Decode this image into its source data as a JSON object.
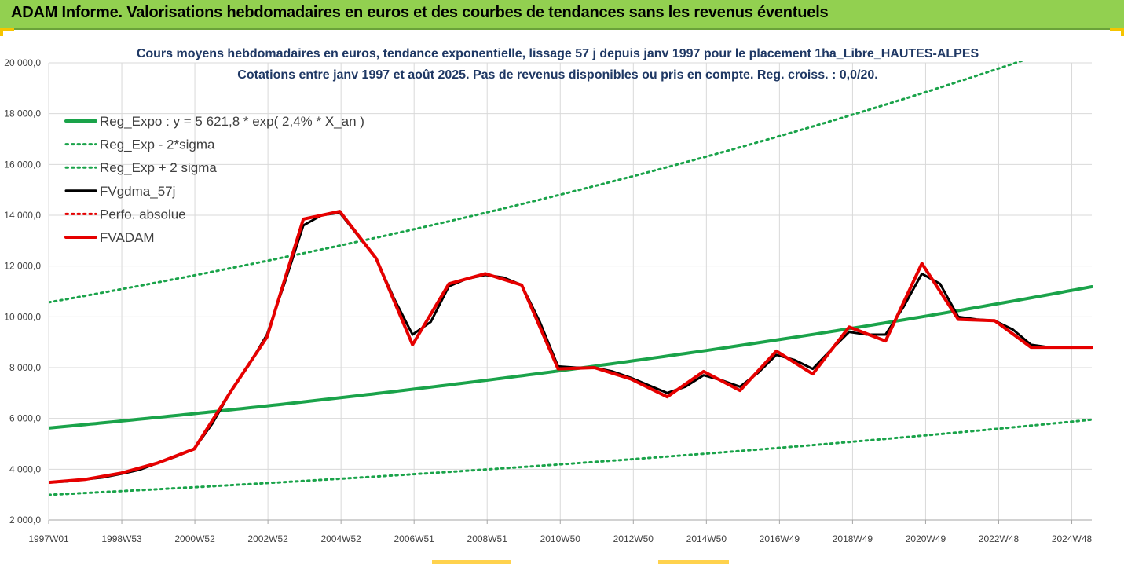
{
  "header": {
    "title": "ADAM Informe. Valorisations hebdomadaires en euros et des courbes de tendances sans les revenus éventuels"
  },
  "chart_data": {
    "type": "line",
    "title_line1": "Cours moyens hebdomadaires en euros, tendance exponentielle, lissage 57 j depuis janv 1997 pour le placement 1ha_Libre_HAUTES-ALPES",
    "title_line2": "Cotations entre janv 1997 et août 2025. Pas de revenus disponibles ou pris en compte. Reg. croiss. : 0,0/20.",
    "ylim": [
      2000,
      20000
    ],
    "xlim": [
      1997.0,
      2025.67
    ],
    "yticks": [
      "2 000,0",
      "4 000,0",
      "6 000,0",
      "8 000,0",
      "10 000,0",
      "12 000,0",
      "14 000,0",
      "16 000,0",
      "18 000,0",
      "20 000,0"
    ],
    "xtick_labels": [
      "1997W01",
      "1998W53",
      "2000W52",
      "2002W52",
      "2004W52",
      "2006W51",
      "2008W51",
      "2010W50",
      "2012W50",
      "2014W50",
      "2016W49",
      "2018W49",
      "2020W49",
      "2022W48",
      "2024W48"
    ],
    "legend_position": "top-left",
    "series": [
      {
        "name": "Reg_Expo : y = 5 621,8 * exp( 2,4% *  X_an )",
        "color": "#1aa34a",
        "style": "solid-thick",
        "formula": {
          "a": 5621.8,
          "b": 0.024,
          "factor": 1.0
        }
      },
      {
        "name": "Reg_Exp - 2*sigma",
        "color": "#1aa34a",
        "style": "dotted",
        "formula": {
          "a": 5621.8,
          "b": 0.024,
          "factor": 0.532
        }
      },
      {
        "name": "Reg_Exp + 2 sigma",
        "color": "#1aa34a",
        "style": "dotted",
        "formula": {
          "a": 5621.8,
          "b": 0.024,
          "factor": 1.88
        }
      },
      {
        "name": "FVgdma_57j",
        "color": "#000000",
        "style": "solid",
        "x": [
          1997.0,
          1997.5,
          1998.0,
          1998.5,
          1999.0,
          1999.5,
          2000.0,
          2000.5,
          2001.0,
          2001.5,
          2002.0,
          2002.5,
          2003.0,
          2003.5,
          2004.0,
          2004.5,
          2005.0,
          2005.5,
          2006.0,
          2006.5,
          2007.0,
          2007.5,
          2008.0,
          2008.5,
          2009.0,
          2009.5,
          2010.0,
          2010.5,
          2011.0,
          2011.5,
          2012.0,
          2012.5,
          2013.0,
          2013.5,
          2014.0,
          2014.5,
          2015.0,
          2015.5,
          2016.0,
          2016.5,
          2017.0,
          2017.5,
          2018.0,
          2018.5,
          2019.0,
          2019.5,
          2020.0,
          2020.5,
          2021.0,
          2021.5,
          2022.0,
          2022.5,
          2023.0,
          2023.5,
          2024.0,
          2024.5,
          2025.0,
          2025.67
        ],
        "values": [
          3480,
          3520,
          3600,
          3680,
          3820,
          3980,
          4250,
          4500,
          4800,
          5800,
          7050,
          8100,
          9300,
          11400,
          13600,
          14000,
          14100,
          13200,
          12300,
          10700,
          9300,
          9800,
          11200,
          11500,
          11650,
          11550,
          11250,
          9800,
          8050,
          8000,
          8000,
          7850,
          7600,
          7300,
          7000,
          7250,
          7700,
          7500,
          7250,
          7800,
          8500,
          8300,
          7950,
          8700,
          9400,
          9300,
          9300,
          10400,
          11700,
          11300,
          10000,
          9900,
          9850,
          9500,
          8900,
          8800,
          8800,
          8800
        ]
      },
      {
        "name": "Perfo. absolue",
        "color": "#e60000",
        "style": "dotted",
        "x": [],
        "values": []
      },
      {
        "name": "FVADAM",
        "color": "#e60000",
        "style": "solid-thick",
        "x": [
          1997.0,
          1998.0,
          1999.0,
          2000.0,
          2001.0,
          2002.0,
          2003.0,
          2004.0,
          2005.0,
          2006.0,
          2007.0,
          2008.0,
          2009.0,
          2010.0,
          2011.0,
          2012.0,
          2013.0,
          2014.0,
          2015.0,
          2016.0,
          2017.0,
          2018.0,
          2019.0,
          2020.0,
          2021.0,
          2022.0,
          2023.0,
          2024.0,
          2025.0,
          2025.67
        ],
        "values": [
          3480,
          3600,
          3850,
          4250,
          4800,
          7050,
          9200,
          13850,
          14150,
          12300,
          8900,
          11300,
          11700,
          11250,
          7950,
          8000,
          7550,
          6850,
          7850,
          7100,
          8650,
          7750,
          9600,
          9050,
          12100,
          9900,
          9850,
          8800,
          8800,
          8800
        ]
      }
    ]
  }
}
